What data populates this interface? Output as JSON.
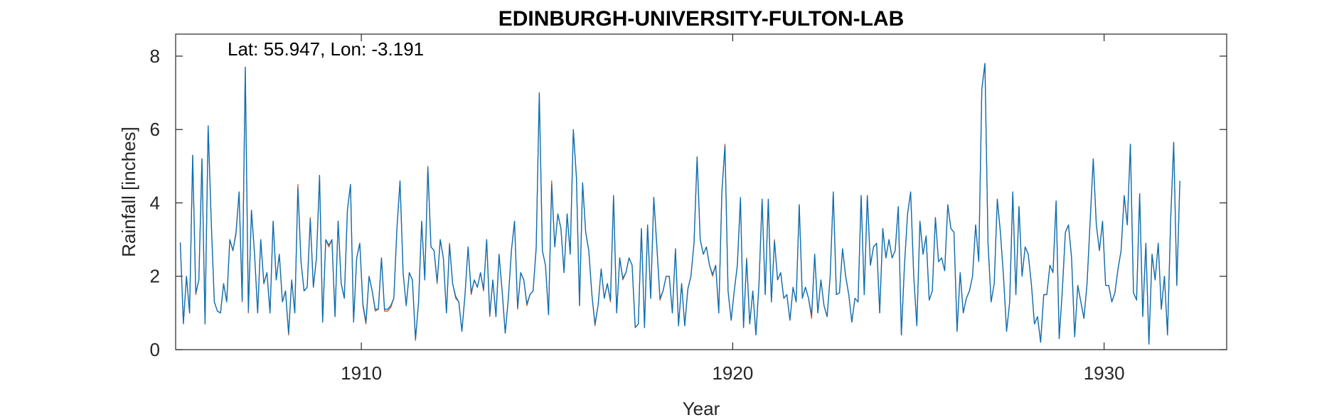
{
  "chart_data": {
    "type": "line",
    "title": "EDINBURGH-UNIVERSITY-FULTON-LAB",
    "xlabel": "Year",
    "ylabel": "Rainfall [inches]",
    "annotation": "Lat: 55.947, Lon: -3.191",
    "xlim": [
      1905.0,
      1933.3
    ],
    "ylim": [
      0,
      8.6
    ],
    "xticks": [
      1910,
      1920,
      1930
    ],
    "yticks": [
      0,
      2,
      4,
      6,
      8
    ],
    "grid": false,
    "x_start": 1905.125,
    "x_step": 0.08333,
    "series": [
      {
        "color": "#D95319",
        "values": [
          2.92,
          0.7,
          2.0,
          1.0,
          5.3,
          1.5,
          1.9,
          5.2,
          0.7,
          6.1,
          3.5,
          1.3,
          1.05,
          1.0,
          1.8,
          1.3,
          3.0,
          2.7,
          3.2,
          4.3,
          1.3,
          7.7,
          1.0,
          3.8,
          2.6,
          1.0,
          3.0,
          1.8,
          2.1,
          1.0,
          3.5,
          1.9,
          2.6,
          1.3,
          1.6,
          0.4,
          1.9,
          1.0,
          4.5,
          2.4,
          1.6,
          1.7,
          3.6,
          1.7,
          2.5,
          4.75,
          0.75,
          3.0,
          2.8,
          3.0,
          0.9,
          3.5,
          1.8,
          1.4,
          3.8,
          4.5,
          0.75,
          2.5,
          2.9,
          1.2,
          0.7,
          2.0,
          1.6,
          1.05,
          1.1,
          2.5,
          1.05,
          1.05,
          1.15,
          1.4,
          3.3,
          4.6,
          2.1,
          1.2,
          2.1,
          1.9,
          0.25,
          1.3,
          3.5,
          1.9,
          5.0,
          2.8,
          2.7,
          1.8,
          3.0,
          2.5,
          1.0,
          2.9,
          1.8,
          1.4,
          1.3,
          0.5,
          1.5,
          2.8,
          1.5,
          1.9,
          1.7,
          2.1,
          1.6,
          3.0,
          0.9,
          1.9,
          0.9,
          2.6,
          1.6,
          0.45,
          1.4,
          2.7,
          3.5,
          1.1,
          2.1,
          1.9,
          1.2,
          1.5,
          1.6,
          2.8,
          7.0,
          2.7,
          2.3,
          0.95,
          4.6,
          2.8,
          3.7,
          3.3,
          2.1,
          3.7,
          2.6,
          6.0,
          4.7,
          1.2,
          4.55,
          3.2,
          2.7,
          1.5,
          0.65,
          1.2,
          2.2,
          1.4,
          1.8,
          1.3,
          4.2,
          1.0,
          2.5,
          1.9,
          2.1,
          2.5,
          2.3,
          0.6,
          0.7,
          3.3,
          0.6,
          3.4,
          1.4,
          4.15,
          2.8,
          1.35,
          1.6,
          2.0,
          2.0,
          1.0,
          2.75,
          0.65,
          1.8,
          0.65,
          1.65,
          2.0,
          2.9,
          5.25,
          3.0,
          2.6,
          2.8,
          2.3,
          2.0,
          2.3,
          1.0,
          4.3,
          5.6,
          1.6,
          0.8,
          1.6,
          2.3,
          4.1,
          0.6,
          2.5,
          0.7,
          1.6,
          0.4,
          1.8,
          4.1,
          1.5,
          4.1,
          1.3,
          3.0,
          1.9,
          2.1,
          1.4,
          1.5,
          0.8,
          1.7,
          1.3,
          3.95,
          1.4,
          1.7,
          1.4,
          0.85,
          2.6,
          1.0,
          1.9,
          1.2,
          0.9,
          2.0,
          4.3,
          1.5,
          1.55,
          2.75,
          2.0,
          1.5,
          0.75,
          1.4,
          1.3,
          4.2,
          1.5,
          4.2,
          2.3,
          2.8,
          2.9,
          1.0,
          3.3,
          2.5,
          3.0,
          2.5,
          2.7,
          3.9,
          0.4,
          2.3,
          3.7,
          4.3,
          2.0,
          0.65,
          3.5,
          2.6,
          3.1,
          1.35,
          1.6,
          3.6,
          2.4,
          2.5,
          2.15,
          3.95,
          3.3,
          3.2,
          0.5,
          2.1,
          1.0,
          1.4,
          1.6,
          2.0,
          3.4,
          2.4,
          7.1,
          7.8,
          2.9,
          1.3,
          1.8,
          4.1,
          3.2,
          2.0,
          0.5,
          1.3,
          4.3,
          1.5,
          3.9,
          2.0,
          2.8,
          2.6,
          1.8,
          0.7,
          0.9,
          0.2,
          1.5,
          1.5,
          2.3,
          2.1,
          4.05,
          0.3,
          1.6,
          3.2,
          3.4,
          2.5,
          0.35,
          1.75,
          1.3,
          0.85,
          1.8,
          3.5,
          5.2,
          3.4,
          2.7,
          3.5,
          1.75,
          1.75,
          1.3,
          1.55,
          2.2,
          2.7,
          4.2,
          3.4,
          5.6,
          1.55,
          1.35,
          4.25,
          0.9,
          2.9,
          0.15,
          2.6,
          1.9,
          2.9,
          1.1,
          2.0,
          0.4,
          3.5,
          5.65,
          1.75,
          4.6
        ]
      },
      {
        "color": "#0072BD",
        "values": [
          2.92,
          0.72,
          2.0,
          1.0,
          5.3,
          1.55,
          1.9,
          5.2,
          0.7,
          6.1,
          3.5,
          1.3,
          1.05,
          1.0,
          1.8,
          1.3,
          3.0,
          2.7,
          3.15,
          4.3,
          1.35,
          7.7,
          1.05,
          3.8,
          2.6,
          1.0,
          3.0,
          1.8,
          2.1,
          1.0,
          3.5,
          1.9,
          2.6,
          1.3,
          1.6,
          0.45,
          1.9,
          1.0,
          4.4,
          2.4,
          1.6,
          1.7,
          3.55,
          1.7,
          2.5,
          4.75,
          0.75,
          3.0,
          2.85,
          3.0,
          0.9,
          3.5,
          1.8,
          1.4,
          3.8,
          4.5,
          0.75,
          2.5,
          2.9,
          1.25,
          0.75,
          2.0,
          1.6,
          1.1,
          1.1,
          2.5,
          1.1,
          1.1,
          1.2,
          1.4,
          3.3,
          4.6,
          2.1,
          1.2,
          2.1,
          1.9,
          0.3,
          1.3,
          3.5,
          1.9,
          4.95,
          2.8,
          2.7,
          1.85,
          3.0,
          2.5,
          1.0,
          2.85,
          1.8,
          1.45,
          1.3,
          0.5,
          1.5,
          2.8,
          1.55,
          1.9,
          1.7,
          2.1,
          1.65,
          3.0,
          0.95,
          1.9,
          0.9,
          2.6,
          1.6,
          0.45,
          1.4,
          2.7,
          3.5,
          1.15,
          2.1,
          1.9,
          1.25,
          1.5,
          1.6,
          2.75,
          7.0,
          2.7,
          2.3,
          0.95,
          4.5,
          2.8,
          3.7,
          3.3,
          2.1,
          3.7,
          2.6,
          6.0,
          4.7,
          1.2,
          4.55,
          3.2,
          2.7,
          1.5,
          0.7,
          1.2,
          2.2,
          1.4,
          1.8,
          1.35,
          4.2,
          1.0,
          2.5,
          1.95,
          2.1,
          2.5,
          2.3,
          0.6,
          0.7,
          3.3,
          0.6,
          3.4,
          1.4,
          4.15,
          2.8,
          1.4,
          1.6,
          2.0,
          2.0,
          1.0,
          2.75,
          0.65,
          1.8,
          0.65,
          1.65,
          2.0,
          2.9,
          5.25,
          3.0,
          2.6,
          2.8,
          2.3,
          2.05,
          2.3,
          1.0,
          4.3,
          5.55,
          1.6,
          0.8,
          1.6,
          2.3,
          4.15,
          0.6,
          2.45,
          0.7,
          1.6,
          0.4,
          1.8,
          4.1,
          1.5,
          4.1,
          1.3,
          2.95,
          1.9,
          2.1,
          1.4,
          1.5,
          0.8,
          1.7,
          1.3,
          3.95,
          1.4,
          1.7,
          1.4,
          0.95,
          2.6,
          1.0,
          1.9,
          1.2,
          0.9,
          2.0,
          4.3,
          1.5,
          1.55,
          2.75,
          2.0,
          1.5,
          0.75,
          1.4,
          1.3,
          4.2,
          1.5,
          4.2,
          2.3,
          2.8,
          2.9,
          1.0,
          3.3,
          2.5,
          3.0,
          2.5,
          2.7,
          3.9,
          0.4,
          2.3,
          3.7,
          4.3,
          2.0,
          0.65,
          3.5,
          2.6,
          3.1,
          1.35,
          1.6,
          3.6,
          2.4,
          2.5,
          2.15,
          3.95,
          3.3,
          3.2,
          0.5,
          2.1,
          1.0,
          1.4,
          1.6,
          2.0,
          3.4,
          2.4,
          7.1,
          7.8,
          2.9,
          1.3,
          1.8,
          4.1,
          3.2,
          2.0,
          0.5,
          1.3,
          4.3,
          1.5,
          3.9,
          2.0,
          2.8,
          2.6,
          1.8,
          0.7,
          0.9,
          0.2,
          1.5,
          1.5,
          2.3,
          2.1,
          4.05,
          0.3,
          1.6,
          3.2,
          3.4,
          2.5,
          0.35,
          1.75,
          1.3,
          0.85,
          1.8,
          3.5,
          5.2,
          3.4,
          2.7,
          3.5,
          1.75,
          1.75,
          1.3,
          1.55,
          2.2,
          2.7,
          4.2,
          3.4,
          5.6,
          1.55,
          1.35,
          4.25,
          0.9,
          2.9,
          0.15,
          2.6,
          1.9,
          2.9,
          1.1,
          2.0,
          0.4,
          3.5,
          5.65,
          1.75,
          4.6
        ]
      }
    ]
  }
}
